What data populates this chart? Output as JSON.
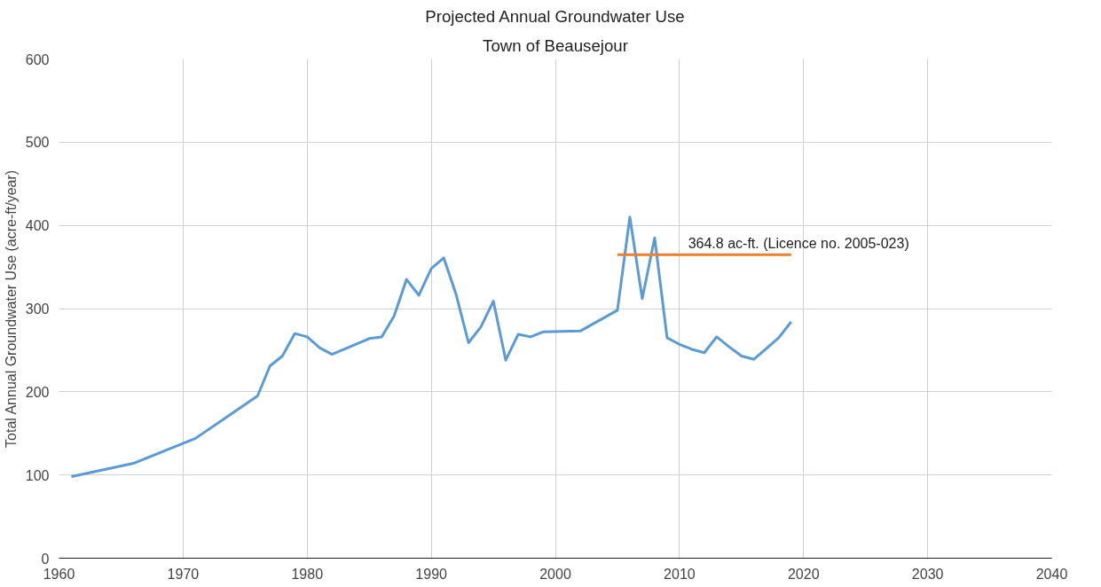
{
  "chart_data": {
    "type": "line",
    "title": "Projected Annual Groundwater Use",
    "subtitle": "Town of Beausejour",
    "ylabel": "Total Annual Groundwater Use (acre-ft/year)",
    "xlim": [
      1960,
      2040
    ],
    "xticks": [
      1960,
      1970,
      1980,
      1990,
      2000,
      2010,
      2020,
      2030,
      2040
    ],
    "ylim": [
      0,
      600
    ],
    "yticks": [
      0,
      100,
      200,
      300,
      400,
      500,
      600
    ],
    "grid": true,
    "series": [
      {
        "color": "#5b9bd5",
        "x": [
          1961,
          1966,
          1971,
          1976,
          1977,
          1978,
          1979,
          1980,
          1981,
          1982,
          1985,
          1986,
          1987,
          1988,
          1989,
          1990,
          1991,
          1992,
          1993,
          1994,
          1995,
          1996,
          1997,
          1998,
          1999,
          2002,
          2005,
          2006,
          2007,
          2008,
          2009,
          2010,
          2011,
          2012,
          2013,
          2014,
          2015,
          2016,
          2017,
          2018,
          2019
        ],
        "values": [
          98,
          114,
          144,
          195,
          231,
          243,
          270,
          266,
          253,
          245,
          264,
          266,
          291,
          335,
          316,
          348,
          361,
          317,
          259,
          278,
          309,
          238,
          269,
          266,
          272,
          273,
          298,
          410,
          312,
          385,
          265,
          257,
          251,
          247,
          266,
          254,
          243,
          239,
          252,
          265,
          284
        ]
      },
      {
        "color": "#ed7d31",
        "x": [
          2005,
          2019
        ],
        "values": [
          364.8,
          364.8
        ]
      }
    ],
    "annotations": [
      {
        "text": "364.8 ac-ft. (Licence no. 2005-023)",
        "x": 2010.7,
        "y": 364.8
      }
    ]
  }
}
